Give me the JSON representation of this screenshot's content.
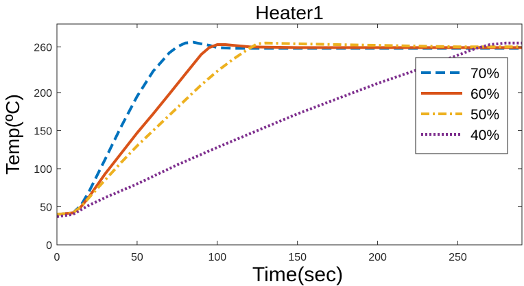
{
  "chart_data": {
    "type": "line",
    "title": "Heater1",
    "xlabel": "Time(sec)",
    "ylabel": "Temp(ºC)",
    "xlim": [
      0,
      290
    ],
    "ylim": [
      0,
      290
    ],
    "xticks": [
      0,
      50,
      100,
      150,
      200,
      250
    ],
    "yticks": [
      0,
      50,
      100,
      150,
      200,
      260
    ],
    "grid": false,
    "legend_position": "top-right",
    "series": [
      {
        "name": "70%",
        "color": "#0072BD",
        "style": "dashed",
        "x": [
          0,
          10,
          15,
          20,
          30,
          40,
          50,
          60,
          70,
          75,
          80,
          85,
          90,
          95,
          100,
          110,
          120,
          150,
          200,
          250,
          290
        ],
        "y": [
          40,
          42,
          52,
          70,
          112,
          155,
          195,
          228,
          252,
          260,
          265,
          266,
          264,
          262,
          259,
          258,
          258,
          258,
          258,
          258,
          258
        ]
      },
      {
        "name": "60%",
        "color": "#D95319",
        "style": "solid",
        "x": [
          0,
          10,
          15,
          20,
          30,
          40,
          50,
          60,
          70,
          80,
          90,
          95,
          100,
          105,
          110,
          120,
          150,
          200,
          250,
          290
        ],
        "y": [
          40,
          42,
          50,
          63,
          93,
          120,
          147,
          172,
          198,
          224,
          250,
          259,
          263,
          263,
          262,
          260,
          259,
          259,
          259,
          259
        ]
      },
      {
        "name": "50%",
        "color": "#EDB120",
        "style": "dashdot",
        "x": [
          0,
          10,
          15,
          20,
          30,
          40,
          50,
          60,
          70,
          80,
          90,
          100,
          110,
          120,
          125,
          130,
          150,
          200,
          250,
          290
        ],
        "y": [
          40,
          42,
          50,
          62,
          85,
          108,
          130,
          150,
          170,
          190,
          210,
          228,
          244,
          258,
          264,
          265,
          264,
          262,
          260,
          260
        ]
      },
      {
        "name": "40%",
        "color": "#7E2F8E",
        "style": "dotted",
        "x": [
          0,
          10,
          15,
          20,
          30,
          50,
          75,
          100,
          125,
          150,
          175,
          200,
          225,
          250,
          260,
          270,
          280,
          290
        ],
        "y": [
          37,
          40,
          46,
          52,
          62,
          80,
          105,
          128,
          150,
          172,
          192,
          212,
          230,
          249,
          257,
          263,
          265,
          265
        ]
      }
    ]
  }
}
